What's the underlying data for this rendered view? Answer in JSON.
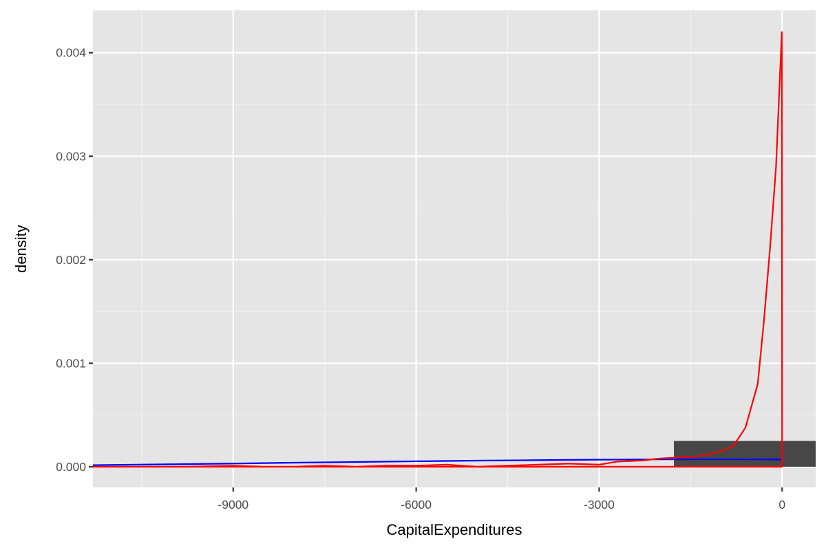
{
  "chart_data": {
    "type": "area",
    "title": "",
    "xlabel": "CapitalExpenditures",
    "ylabel": "density",
    "xlim": [
      -11300,
      550
    ],
    "ylim": [
      -0.0002,
      0.00441
    ],
    "x_ticks": [
      -9000,
      -6000,
      -3000,
      0
    ],
    "x_tick_labels": [
      "-9000",
      "-6000",
      "-3000",
      "0"
    ],
    "y_ticks": [
      0,
      0.001,
      0.002,
      0.003,
      0.004
    ],
    "y_tick_labels": [
      "0.000",
      "0.001",
      "0.002",
      "0.003",
      "0.004"
    ],
    "grid": true,
    "histogram": {
      "color": "#474747",
      "bins": [
        {
          "x0": -1775,
          "x1": 550,
          "density": 0.00025
        }
      ]
    },
    "density_curve": {
      "color": "#ff0000",
      "x": [
        -11300,
        -10500,
        -9800,
        -9000,
        -8500,
        -8000,
        -7500,
        -7000,
        -6500,
        -6000,
        -5500,
        -5000,
        -4500,
        -4000,
        -3500,
        -3000,
        -2700,
        -2300,
        -2000,
        -1700,
        -1400,
        -1200,
        -1000,
        -800,
        -600,
        -400,
        -300,
        -200,
        -100,
        -5,
        0
      ],
      "y": [
        0.0,
        0.0,
        0.0,
        1e-05,
        0.0,
        0.0,
        1e-05,
        0.0,
        1e-05,
        1e-05,
        2e-05,
        0.0,
        1e-05,
        2e-05,
        3e-05,
        2e-05,
        5e-05,
        6e-05,
        8e-05,
        9e-05,
        0.0001,
        0.00012,
        0.00015,
        0.0002,
        0.00038,
        0.0008,
        0.0014,
        0.0021,
        0.0029,
        0.0042,
        0.0
      ]
    },
    "normal_curve": {
      "color": "#0000ff",
      "x": [
        -11300,
        -10000,
        -9000,
        -8000,
        -7000,
        -6000,
        -5000,
        -4000,
        -3000,
        -2000,
        -1500,
        -1000,
        -500,
        0
      ],
      "y": [
        1.5e-05,
        2.4e-05,
        3.1e-05,
        3.9e-05,
        4.6e-05,
        5.3e-05,
        5.9e-05,
        6.4e-05,
        6.8e-05,
        7.1e-05,
        7.2e-05,
        7.2e-05,
        7.1e-05,
        7e-05
      ]
    }
  }
}
